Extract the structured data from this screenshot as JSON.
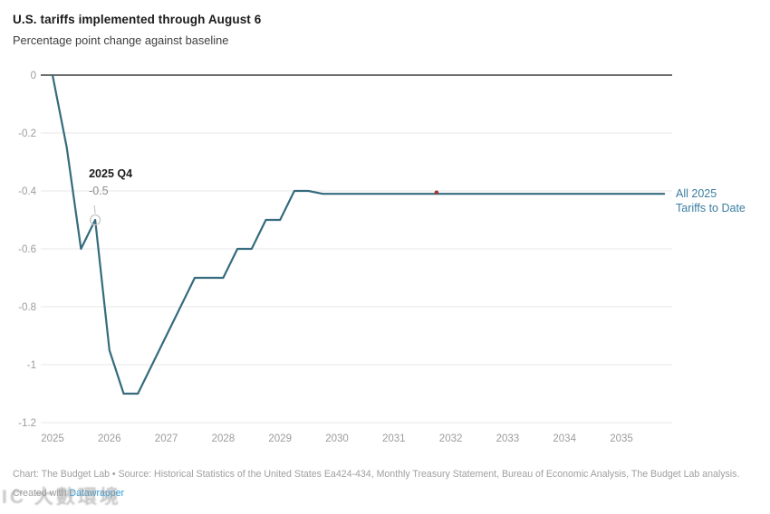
{
  "header": {
    "title": "U.S. tariffs implemented through August 6",
    "subtitle": "Percentage point change against baseline"
  },
  "chart_data": {
    "type": "line",
    "title": "U.S. tariffs implemented through August 6",
    "subtitle": "Percentage point change against baseline",
    "ylim": [
      -1.2,
      0
    ],
    "grid": "horizontal",
    "legend_position": "right-of-line-end",
    "y_tick_labels": [
      "0",
      "-0.2",
      "-0.4",
      "-0.6",
      "-0.8",
      "-1",
      "-1.2"
    ],
    "x_tick_labels": [
      "2025",
      "2026",
      "2027",
      "2028",
      "2029",
      "2030",
      "2031",
      "2032",
      "2033",
      "2034",
      "2035"
    ],
    "series": [
      {
        "name": "All 2025 Tariffs to Date",
        "color": "#356b7d",
        "x": [
          "2025 Q1",
          "2025 Q2",
          "2025 Q3",
          "2025 Q4",
          "2026 Q1",
          "2026 Q2",
          "2026 Q3",
          "2026 Q4",
          "2027 Q1",
          "2027 Q2",
          "2027 Q3",
          "2027 Q4",
          "2028 Q1",
          "2028 Q2",
          "2028 Q3",
          "2028 Q4",
          "2029 Q1",
          "2029 Q2",
          "2029 Q3",
          "2029 Q4",
          "2030 Q1",
          "2030 Q2",
          "2030 Q3",
          "2030 Q4",
          "2031 Q1",
          "2031 Q2",
          "2031 Q3",
          "2031 Q4",
          "2032 Q1",
          "2032 Q2",
          "2032 Q3",
          "2032 Q4",
          "2033 Q1",
          "2033 Q2",
          "2033 Q3",
          "2033 Q4",
          "2034 Q1",
          "2034 Q2",
          "2034 Q3",
          "2034 Q4",
          "2035 Q1",
          "2035 Q2",
          "2035 Q3",
          "2035 Q4"
        ],
        "values": [
          0,
          -0.25,
          -0.6,
          -0.5,
          -0.95,
          -1.1,
          -1.1,
          -1,
          -0.9,
          -0.8,
          -0.7,
          -0.7,
          -0.7,
          -0.6,
          -0.6,
          -0.5,
          -0.5,
          -0.4,
          -0.4,
          -0.41,
          -0.41,
          -0.41,
          -0.41,
          -0.41,
          -0.41,
          -0.41,
          -0.41,
          -0.41,
          -0.41,
          -0.41,
          -0.41,
          -0.41,
          -0.41,
          -0.41,
          -0.41,
          -0.41,
          -0.41,
          -0.41,
          -0.41,
          -0.41,
          -0.41,
          -0.41,
          -0.41,
          -0.41
        ]
      }
    ],
    "annotations": [
      {
        "text": "2025 Q4",
        "value_text": "-0.5",
        "x": "2025 Q4",
        "value": -0.5
      }
    ],
    "markers": [
      {
        "type": "point",
        "color": "#9e3b3d",
        "x": "2031 Q4",
        "value": -0.41
      }
    ],
    "colors": {
      "line": "#356b7d",
      "zero_gridline": "#3f3f3f",
      "gridline": "#e7e7e7",
      "tick_label": "#9c9c9c",
      "series_label": "#3a7da1",
      "red_marker": "#9e3b3d"
    }
  },
  "labels": {
    "series_line1": "All 2025",
    "series_line2": "Tariffs to Date"
  },
  "footer": {
    "credit": "Chart: The Budget Lab • Source: Historical Statistics of the United States Ea424-434, Monthly Treasury Statement, Bureau of Economic Analysis, The Budget Lab analysis.",
    "created_prefix": "Created with ",
    "created_link": "Datawrapper"
  },
  "watermark": {
    "text": "IC 大數環境"
  }
}
